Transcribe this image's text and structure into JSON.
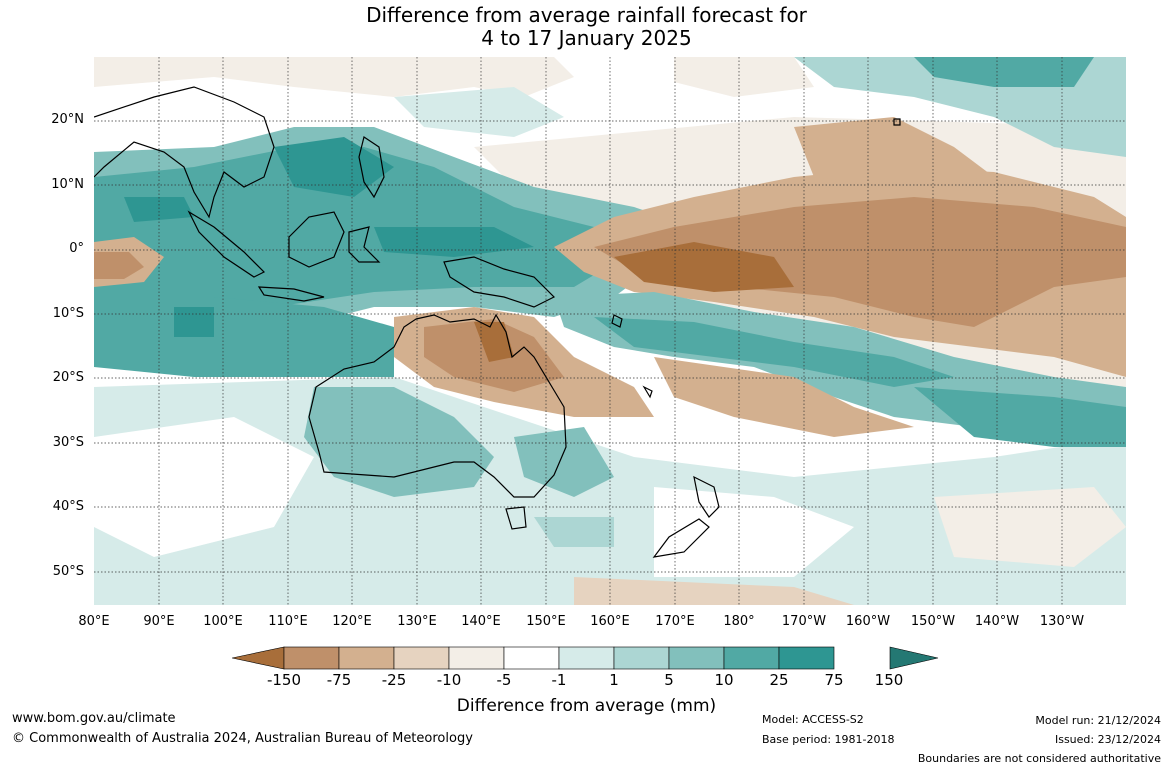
{
  "title": {
    "line1": "Difference from average rainfall forecast for",
    "line2": "4 to 17 January 2025"
  },
  "map": {
    "lat_ticks": [
      "20°N",
      "10°N",
      "0°",
      "10°S",
      "20°S",
      "30°S",
      "40°S",
      "50°S"
    ],
    "lon_ticks": [
      "80°E",
      "90°E",
      "100°E",
      "110°E",
      "120°E",
      "130°E",
      "140°E",
      "150°E",
      "160°E",
      "170°E",
      "180°",
      "170°W",
      "160°W",
      "150°W",
      "140°W",
      "130°W"
    ]
  },
  "legend": {
    "ticks": [
      "-150",
      "-75",
      "-25",
      "-10",
      "-5",
      "-1",
      "1",
      "5",
      "10",
      "25",
      "75",
      "150"
    ],
    "colors": [
      "#a86e3a",
      "#bf906a",
      "#d3b08f",
      "#e6d3c0",
      "#f3eee7",
      "#ffffff",
      "#d6ebe9",
      "#acd6d3",
      "#82c0bc",
      "#51a9a4",
      "#2e9692",
      "#247873"
    ],
    "label": "Difference from average (mm)"
  },
  "footer": {
    "website": "www.bom.gov.au/climate",
    "copyright": "© Commonwealth of Australia 2024, Australian Bureau of Meteorology",
    "model": "Model: ACCESS-S2",
    "base_period": "Base period: 1981-2018",
    "model_run": "Model run: 21/12/2024",
    "issued": "Issued: 23/12/2024",
    "disclaimer": "Boundaries are not considered authoritative"
  }
}
